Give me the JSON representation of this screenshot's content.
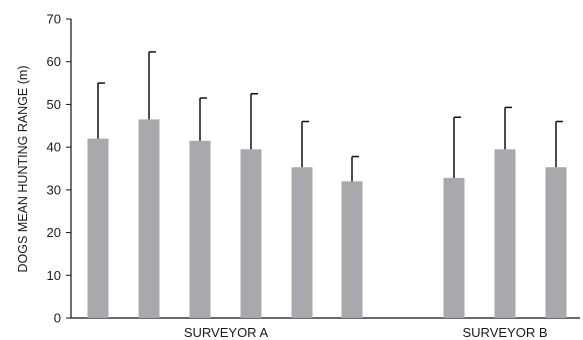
{
  "chart_data": {
    "type": "bar",
    "ylabel": "DOGS MEAN HUNTING RANGE (m)",
    "ylim": [
      0,
      70
    ],
    "yticks": [
      0,
      10,
      20,
      30,
      40,
      50,
      60,
      70
    ],
    "grid": false,
    "groups": [
      {
        "label": "SURVEYOR A",
        "bar_count": 6
      },
      {
        "label": "SURVEYOR B",
        "bar_count": 3
      }
    ],
    "bars": [
      {
        "group": 0,
        "value": 42,
        "error_upper": 55
      },
      {
        "group": 0,
        "value": 46.5,
        "error_upper": 62.3
      },
      {
        "group": 0,
        "value": 41.5,
        "error_upper": 51.5
      },
      {
        "group": 0,
        "value": 39.5,
        "error_upper": 52.5
      },
      {
        "group": 0,
        "value": 35.3,
        "error_upper": 46
      },
      {
        "group": 0,
        "value": 32,
        "error_upper": 37.8
      },
      {
        "group": 1,
        "value": 32.8,
        "error_upper": 47
      },
      {
        "group": 1,
        "value": 39.5,
        "error_upper": 49.3
      },
      {
        "group": 1,
        "value": 35.3,
        "error_upper": 46
      }
    ],
    "colors": {
      "bar": "#a9a9ad",
      "error_bar": "#111111",
      "axis": "#111111"
    }
  }
}
